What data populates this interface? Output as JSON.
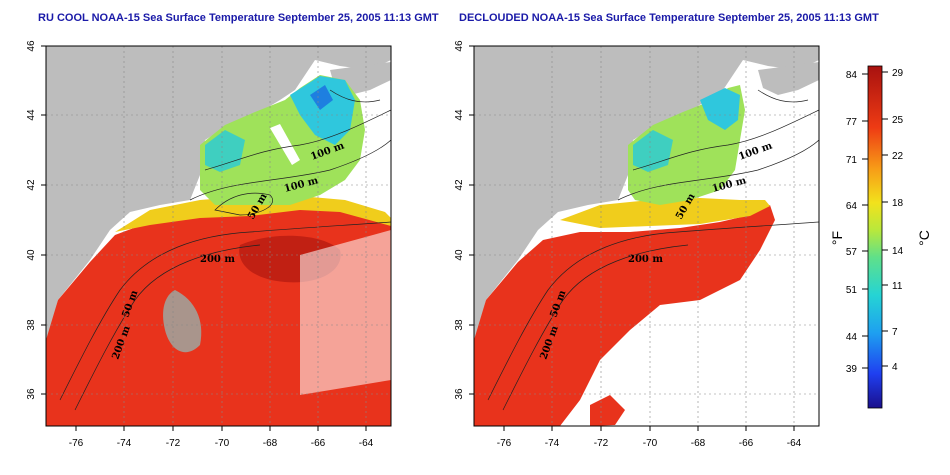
{
  "panels": [
    {
      "title": "RU COOL NOAA-15 Sea Surface Temperature September 25, 2005 11:13 GMT"
    },
    {
      "title": "DECLOUDED NOAA-15 Sea Surface Temperature September 25, 2005 11:13 GMT"
    }
  ],
  "axes": {
    "x_ticks": [
      "-76",
      "-74",
      "-72",
      "-70",
      "-68",
      "-66",
      "-64"
    ],
    "y_ticks": [
      "46",
      "44",
      "42",
      "40",
      "38",
      "36"
    ]
  },
  "contours": [
    "100 m",
    "100 m",
    "50 m",
    "200 m",
    "50 m",
    "200 m"
  ],
  "colorbar": {
    "f_label": "°F",
    "c_label": "°C",
    "f_ticks": [
      "84",
      "77",
      "71",
      "64",
      "57",
      "51",
      "44",
      "39"
    ],
    "c_ticks": [
      "29",
      "25",
      "22",
      "18",
      "14",
      "11",
      "7",
      "4"
    ]
  },
  "colors": {
    "land": "#bdbdbd",
    "title": "#1a1aa8",
    "warm": "#e8331c",
    "cool": "#23c6d9"
  }
}
